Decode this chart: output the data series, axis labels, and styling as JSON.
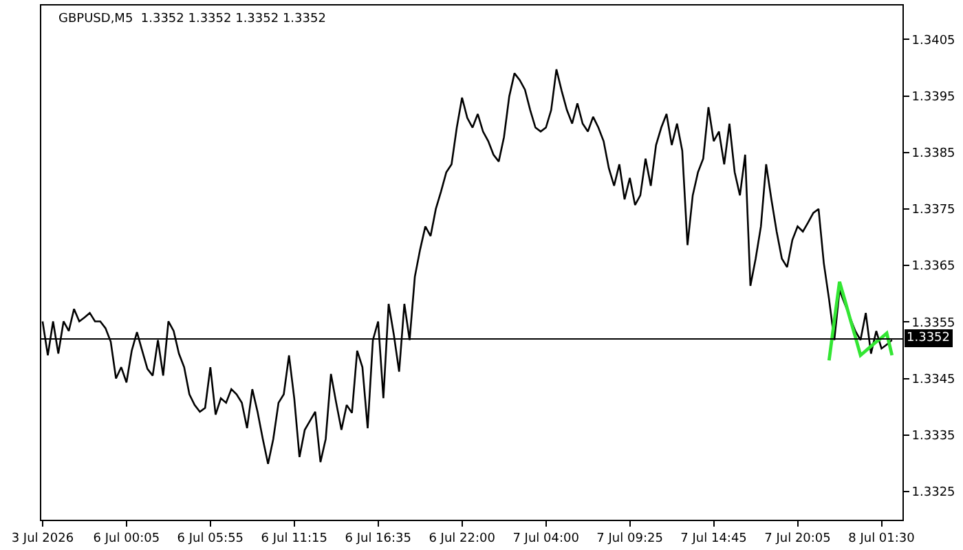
{
  "chart_data": {
    "type": "line",
    "title": "GBPUSD,M5  1.3352 1.3352 1.3352 1.3352",
    "categories": [
      "3 Jul 2026",
      null,
      null,
      null,
      null,
      null,
      null,
      null,
      null,
      null,
      null,
      null,
      null,
      null,
      null,
      null,
      "6 Jul 00:05",
      null,
      null,
      null,
      null,
      null,
      null,
      null,
      null,
      null,
      null,
      null,
      null,
      null,
      null,
      null,
      "6 Jul 05:55",
      null,
      null,
      null,
      null,
      null,
      null,
      null,
      null,
      null,
      null,
      null,
      null,
      null,
      null,
      null,
      "6 Jul 11:15",
      null,
      null,
      null,
      null,
      null,
      null,
      null,
      null,
      null,
      null,
      null,
      null,
      null,
      null,
      null,
      "6 Jul 16:35",
      null,
      null,
      null,
      null,
      null,
      null,
      null,
      null,
      null,
      null,
      null,
      null,
      null,
      null,
      null,
      "6 Jul 22:00",
      null,
      null,
      null,
      null,
      null,
      null,
      null,
      null,
      null,
      null,
      null,
      null,
      null,
      null,
      null,
      "7 Jul 04:00",
      null,
      null,
      null,
      null,
      null,
      null,
      null,
      null,
      null,
      null,
      null,
      null,
      null,
      null,
      null,
      "7 Jul 09:25",
      null,
      null,
      null,
      null,
      null,
      null,
      null,
      null,
      null,
      null,
      null,
      null,
      null,
      null,
      null,
      "7 Jul 14:45",
      null,
      null,
      null,
      null,
      null,
      null,
      null,
      null,
      null,
      null,
      null,
      null,
      null,
      null,
      null,
      "7 Jul 20:05",
      null,
      null,
      null,
      null,
      null,
      null,
      null,
      null,
      null,
      null,
      null,
      null,
      null,
      null,
      null,
      "8 Jul 01:30",
      null,
      null
    ],
    "series": [
      {
        "color": "#000000",
        "values": [
          1.33551,
          1.33491,
          1.33551,
          1.33494,
          1.33551,
          1.33534,
          1.33573,
          1.33551,
          1.33558,
          1.33566,
          1.33551,
          1.33551,
          1.33539,
          1.33515,
          1.3345,
          1.3347,
          1.33443,
          1.33499,
          1.33532,
          1.33499,
          1.33467,
          1.33455,
          1.33518,
          1.33455,
          1.33551,
          1.33534,
          1.33494,
          1.3347,
          1.33422,
          1.33403,
          1.33391,
          1.33398,
          1.3347,
          1.33386,
          1.33415,
          1.33407,
          1.33431,
          1.33422,
          1.33407,
          1.33362,
          1.33431,
          1.33391,
          1.33343,
          1.33299,
          1.33343,
          1.33407,
          1.33422,
          1.33491,
          1.33415,
          1.33311,
          1.33359,
          1.33375,
          1.33391,
          1.33302,
          1.33343,
          1.33458,
          1.33407,
          1.33359,
          1.33403,
          1.33389,
          1.33499,
          1.3347,
          1.33362,
          1.33518,
          1.33551,
          1.33415,
          1.33582,
          1.33527,
          1.33462,
          1.33582,
          1.33518,
          1.3363,
          1.33678,
          1.33719,
          1.33702,
          1.3375,
          1.33781,
          1.33815,
          1.33829,
          1.33894,
          1.33947,
          1.33911,
          1.33894,
          1.33918,
          1.33887,
          1.3387,
          1.33846,
          1.33834,
          1.33877,
          1.33949,
          1.3399,
          1.33978,
          1.33961,
          1.33925,
          1.33894,
          1.33887,
          1.33894,
          1.33925,
          1.33997,
          1.33959,
          1.33925,
          1.33901,
          1.33937,
          1.33901,
          1.33887,
          1.33913,
          1.33894,
          1.3387,
          1.33822,
          1.33791,
          1.33829,
          1.33767,
          1.33805,
          1.33757,
          1.33774,
          1.33839,
          1.33791,
          1.33863,
          1.33894,
          1.33918,
          1.33863,
          1.33901,
          1.33853,
          1.33686,
          1.33774,
          1.33815,
          1.33839,
          1.3393,
          1.3387,
          1.33887,
          1.33829,
          1.33901,
          1.33815,
          1.33774,
          1.33846,
          1.33614,
          1.33662,
          1.33719,
          1.33829,
          1.33767,
          1.3371,
          1.33662,
          1.33647,
          1.33695,
          1.33719,
          1.3371,
          1.33726,
          1.33743,
          1.3375,
          1.33654,
          1.3359,
          1.33518,
          1.33606,
          1.33582,
          1.33558,
          1.33534,
          1.33518,
          1.33566,
          1.33494,
          1.33534,
          1.33503,
          1.3351,
          1.33518
        ]
      },
      {
        "color": "#33e633",
        "values": [
          null,
          null,
          null,
          null,
          null,
          null,
          null,
          null,
          null,
          null,
          null,
          null,
          null,
          null,
          null,
          null,
          null,
          null,
          null,
          null,
          null,
          null,
          null,
          null,
          null,
          null,
          null,
          null,
          null,
          null,
          null,
          null,
          null,
          null,
          null,
          null,
          null,
          null,
          null,
          null,
          null,
          null,
          null,
          null,
          null,
          null,
          null,
          null,
          null,
          null,
          null,
          null,
          null,
          null,
          null,
          null,
          null,
          null,
          null,
          null,
          null,
          null,
          null,
          null,
          null,
          null,
          null,
          null,
          null,
          null,
          null,
          null,
          null,
          null,
          null,
          null,
          null,
          null,
          null,
          null,
          null,
          null,
          null,
          null,
          null,
          null,
          null,
          null,
          null,
          null,
          null,
          null,
          null,
          null,
          null,
          null,
          null,
          null,
          null,
          null,
          null,
          null,
          null,
          null,
          null,
          null,
          null,
          null,
          null,
          null,
          null,
          null,
          null,
          null,
          null,
          null,
          null,
          null,
          null,
          null,
          null,
          null,
          null,
          null,
          null,
          null,
          null,
          null,
          null,
          null,
          null,
          null,
          null,
          null,
          null,
          null,
          null,
          null,
          null,
          null,
          null,
          null,
          null,
          null,
          null,
          null,
          null,
          null,
          null,
          null,
          1.33482,
          1.33552,
          1.33621,
          1.33589,
          1.33556,
          1.33524,
          1.33491,
          1.33499,
          1.33507,
          1.33515,
          1.33522,
          1.3353,
          1.33491
        ]
      }
    ],
    "ylim": [
      1.332,
      1.3411
    ],
    "yticks": [
      1.3325,
      1.3335,
      1.3345,
      1.3355,
      1.3365,
      1.3375,
      1.3385,
      1.3395,
      1.3405
    ],
    "ref_lines": [
      {
        "axis": "y",
        "value": 1.3352,
        "label": "1.3352",
        "color": "#000000"
      }
    ]
  }
}
